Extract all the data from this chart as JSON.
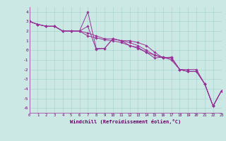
{
  "title": "",
  "xlabel": "Windchill (Refroidissement éolien,°C)",
  "bg_color": "#cce8e4",
  "grid_color": "#aad4d0",
  "line_color": "#993399",
  "xlim": [
    0,
    23
  ],
  "ylim": [
    -6.5,
    4.5
  ],
  "yticks": [
    -6,
    -5,
    -4,
    -3,
    -2,
    -1,
    0,
    1,
    2,
    3,
    4
  ],
  "xticks": [
    0,
    1,
    2,
    3,
    4,
    5,
    6,
    7,
    8,
    9,
    10,
    11,
    12,
    13,
    14,
    15,
    16,
    17,
    18,
    19,
    20,
    21,
    22,
    23
  ],
  "series": [
    [
      3.0,
      2.7,
      2.5,
      2.5,
      2.0,
      2.0,
      2.0,
      4.0,
      0.2,
      0.2,
      1.2,
      1.0,
      0.8,
      0.5,
      0.0,
      -0.5,
      -0.8,
      -0.7,
      -2.0,
      -2.0,
      -2.0,
      -3.5,
      -5.8,
      -4.2
    ],
    [
      3.0,
      2.7,
      2.5,
      2.5,
      2.0,
      2.0,
      2.0,
      2.5,
      0.1,
      0.2,
      1.2,
      1.0,
      0.5,
      0.3,
      -0.2,
      -0.8,
      -0.7,
      -1.0,
      -2.0,
      -2.2,
      -2.2,
      -3.5,
      -5.8,
      -4.2
    ],
    [
      3.0,
      2.7,
      2.5,
      2.5,
      2.0,
      2.0,
      2.0,
      1.8,
      1.5,
      1.2,
      1.2,
      1.0,
      1.0,
      0.8,
      0.5,
      -0.2,
      -0.8,
      -0.8,
      -2.0,
      -2.2,
      -2.2,
      -3.5,
      -5.8,
      -4.2
    ],
    [
      3.0,
      2.7,
      2.5,
      2.5,
      2.0,
      2.0,
      2.0,
      1.5,
      1.3,
      1.1,
      1.0,
      0.8,
      0.5,
      0.2,
      -0.2,
      -0.5,
      -0.7,
      -0.8,
      -2.0,
      -2.2,
      -2.2,
      -3.5,
      -5.8,
      -4.2
    ]
  ]
}
